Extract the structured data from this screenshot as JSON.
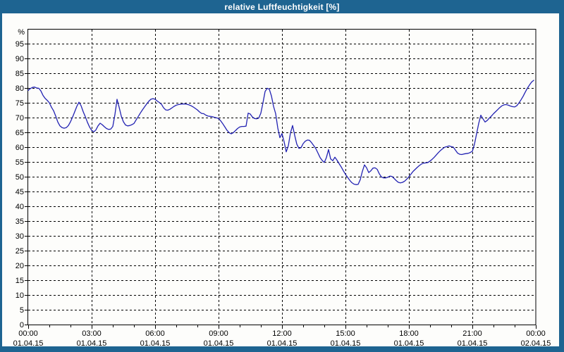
{
  "window": {
    "title": "relative Luftfeuchtigkeit [%]",
    "frame_color": "#1e6491"
  },
  "chart_data": {
    "type": "line",
    "title": "relative Luftfeuchtigkeit [%]",
    "xlabel": "",
    "ylabel": "relative Luftfeuchtigkeit",
    "y_unit": "%",
    "ylim": [
      0,
      100
    ],
    "grid": "dashed",
    "legend": "none",
    "line_color": "#2222b2",
    "y_ticks": [
      0,
      5,
      10,
      15,
      20,
      25,
      30,
      35,
      40,
      45,
      50,
      55,
      60,
      65,
      70,
      75,
      80,
      85,
      90,
      95
    ],
    "x_axis": {
      "hours_span": 24,
      "major_tick_every_hours": 3,
      "minor_tick_every_hours": 1,
      "labels": [
        {
          "time": "00:00",
          "date": "01.04.15"
        },
        {
          "time": "03:00",
          "date": "01.04.15"
        },
        {
          "time": "06:00",
          "date": "01.04.15"
        },
        {
          "time": "09:00",
          "date": "01.04.15"
        },
        {
          "time": "12:00",
          "date": "01.04.15"
        },
        {
          "time": "15:00",
          "date": "01.04.15"
        },
        {
          "time": "18:00",
          "date": "01.04.15"
        },
        {
          "time": "21:00",
          "date": "01.04.15"
        },
        {
          "time": "00:00",
          "date": "02.04.15"
        }
      ]
    },
    "series": [
      {
        "name": "relative Luftfeuchtigkeit [%]",
        "t_start_hours": 0,
        "t_step_hours": 0.1,
        "values": [
          79.2,
          79.8,
          80.2,
          80.3,
          80.0,
          79.9,
          79.0,
          77.5,
          76.5,
          75.8,
          75.0,
          73.5,
          72.3,
          70.5,
          68.5,
          67.2,
          66.6,
          66.4,
          66.6,
          67.3,
          68.6,
          70.2,
          72.0,
          73.8,
          75.2,
          74.0,
          72.0,
          70.3,
          68.4,
          66.8,
          65.7,
          65.2,
          65.8,
          67.2,
          68.1,
          67.6,
          66.9,
          66.3,
          66.0,
          66.1,
          67.0,
          71.0,
          76.2,
          73.5,
          70.5,
          68.6,
          67.5,
          67.2,
          67.3,
          67.6,
          68.0,
          69.2,
          70.3,
          71.5,
          72.6,
          73.6,
          74.6,
          75.5,
          76.2,
          76.4,
          76.2,
          75.6,
          75.1,
          74.5,
          73.3,
          72.6,
          72.5,
          72.8,
          73.3,
          73.8,
          74.2,
          74.4,
          74.5,
          74.6,
          74.6,
          74.5,
          74.3,
          74.0,
          73.6,
          73.1,
          72.6,
          71.9,
          71.4,
          71.3,
          70.8,
          70.5,
          70.4,
          70.3,
          70.1,
          69.9,
          69.7,
          68.9,
          67.9,
          66.8,
          65.7,
          64.9,
          64.5,
          64.9,
          65.6,
          66.3,
          66.8,
          67.0,
          67.0,
          67.1,
          71.5,
          71.2,
          70.2,
          69.7,
          69.6,
          69.8,
          71.5,
          75.0,
          78.8,
          79.9,
          79.6,
          77.3,
          73.8,
          71.3,
          66.5,
          63.2,
          64.6,
          61.8,
          58.4,
          60.5,
          64.8,
          67.3,
          64.0,
          61.0,
          59.6,
          59.8,
          61.2,
          62.0,
          62.4,
          62.3,
          61.5,
          60.5,
          59.5,
          58.0,
          56.5,
          55.5,
          54.8,
          56.5,
          59.2,
          56.0,
          55.4,
          56.6,
          55.6,
          54.4,
          53.3,
          52.0,
          50.8,
          49.8,
          48.8,
          48.0,
          47.5,
          47.3,
          47.4,
          49.0,
          51.8,
          54.0,
          53.0,
          51.4,
          52.0,
          52.9,
          53.0,
          52.5,
          51.0,
          49.9,
          49.6,
          49.6,
          49.8,
          50.2,
          50.1,
          49.4,
          48.7,
          48.1,
          47.9,
          48.1,
          48.5,
          49.2,
          50.0,
          50.9,
          51.8,
          52.5,
          53.2,
          53.8,
          54.3,
          54.6,
          54.7,
          54.8,
          55.3,
          55.9,
          56.6,
          57.4,
          58.2,
          58.9,
          59.5,
          60.0,
          60.2,
          60.4,
          60.2,
          60.0,
          59.0,
          58.0,
          57.6,
          57.5,
          57.7,
          57.8,
          57.9,
          58.2,
          58.6,
          61.0,
          64.5,
          68.0,
          70.8,
          69.6,
          68.5,
          69.0,
          69.8,
          70.5,
          71.3,
          72.0,
          72.7,
          73.4,
          74.0,
          74.3,
          74.4,
          74.2,
          73.9,
          73.7,
          73.6,
          74.0,
          74.9,
          76.0,
          77.2,
          78.6,
          79.9,
          81.0,
          82.0,
          82.6
        ]
      }
    ]
  }
}
